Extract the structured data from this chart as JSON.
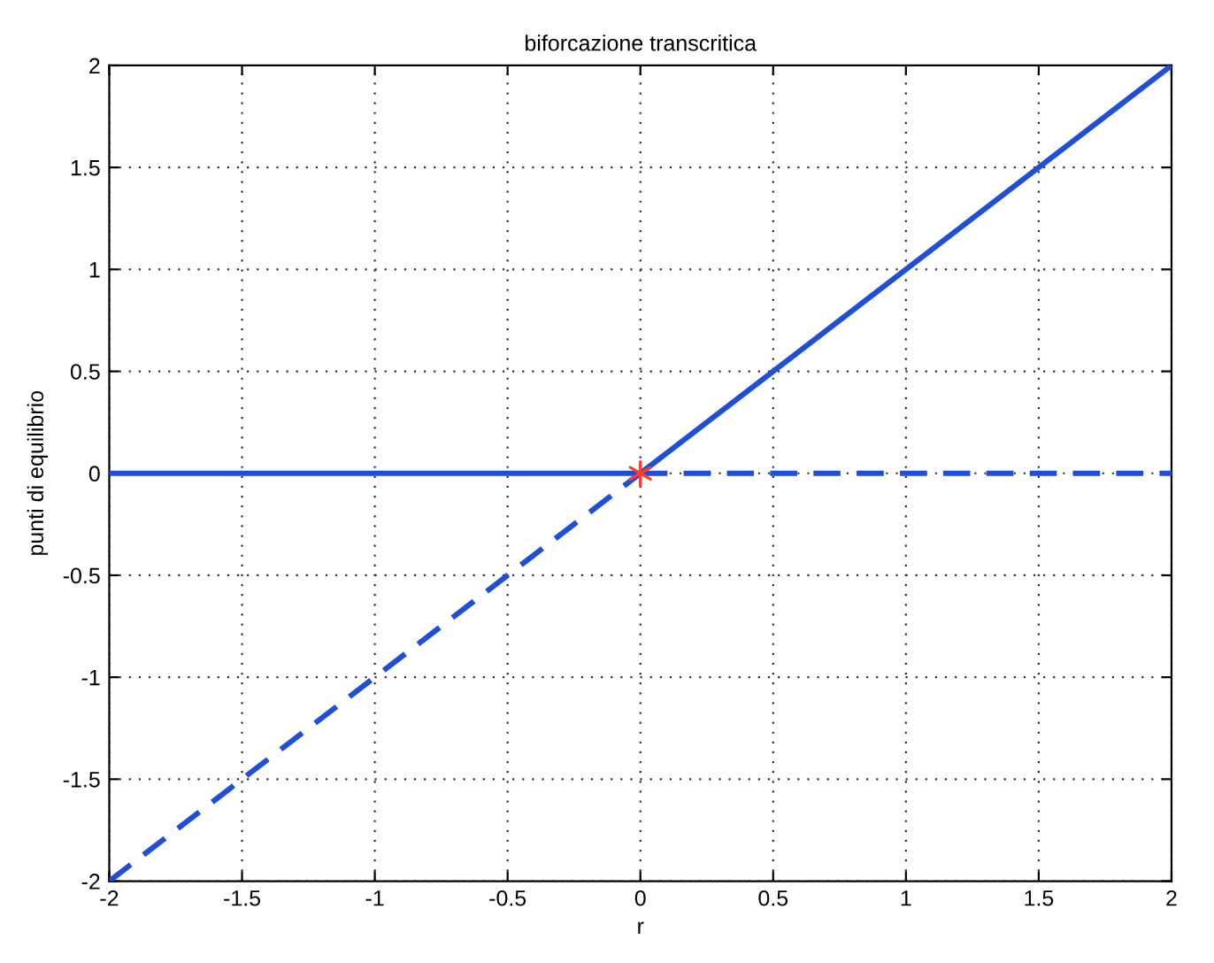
{
  "chart_data": {
    "type": "line",
    "title": "biforcazione transcritica",
    "xlabel": "r",
    "ylabel": "punti di equilibrio",
    "series": [
      {
        "color": "#1f4fd8",
        "line_style": "solid",
        "x": [
          -2,
          0
        ],
        "values": [
          0,
          0
        ]
      },
      {
        "color": "#1f4fd8",
        "line_style": "dashed",
        "x": [
          -2,
          0
        ],
        "values": [
          -2,
          0
        ]
      },
      {
        "color": "#1f4fd8",
        "line_style": "solid",
        "x": [
          0,
          2
        ],
        "values": [
          0,
          2
        ]
      },
      {
        "color": "#1f4fd8",
        "line_style": "dashed",
        "x": [
          0,
          2
        ],
        "values": [
          0,
          0
        ]
      },
      {
        "type": "scatter",
        "color": "#ff3b30",
        "marker": "cross",
        "x": [
          0
        ],
        "values": [
          0
        ]
      }
    ],
    "xlim": [
      -2,
      2
    ],
    "ylim": [
      -2,
      2
    ],
    "xticks": [
      -2,
      -1.5,
      -1,
      -0.5,
      0,
      0.5,
      1,
      1.5,
      2
    ],
    "yticks": [
      -2,
      -1.5,
      -1,
      -0.5,
      0,
      0.5,
      1,
      1.5,
      2
    ],
    "grid": true
  }
}
